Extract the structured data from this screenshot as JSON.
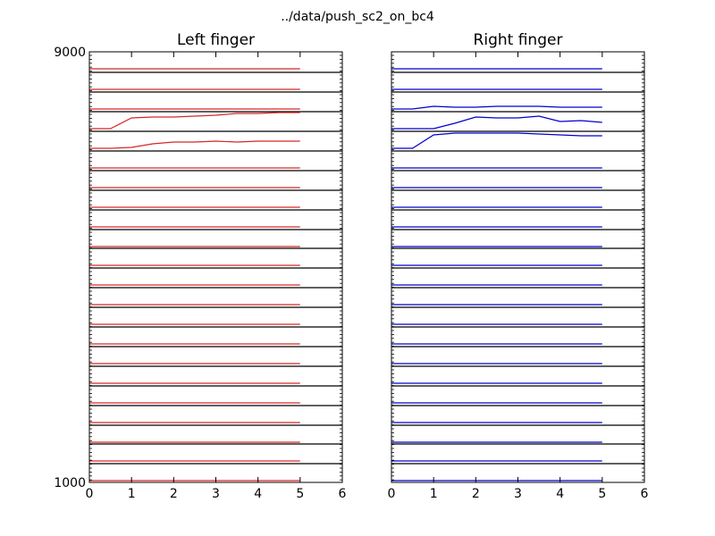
{
  "figure": {
    "title": "../data/push_sc2_on_bc4"
  },
  "chart_data": [
    {
      "type": "line",
      "title": "Left finger",
      "color": "#d62728",
      "xlim": [
        0,
        6
      ],
      "x_ticks": [
        "0",
        "1",
        "2",
        "3",
        "4",
        "5",
        "6"
      ],
      "y_tick_labels_visible": [
        "9000",
        "1000"
      ],
      "n_sensor_bands": 22,
      "x": [
        0,
        0.5,
        1,
        1.5,
        2,
        2.5,
        3,
        3.5,
        4,
        4.5,
        5
      ],
      "series": [
        {
          "values": [
            0,
            0,
            0,
            0,
            0,
            0,
            0,
            0,
            0,
            0,
            0
          ]
        },
        {
          "values": [
            0,
            0,
            0,
            0,
            0,
            0,
            0,
            0,
            0,
            0,
            0
          ]
        },
        {
          "values": [
            0,
            0,
            0,
            0,
            0,
            0,
            0,
            0,
            0,
            0,
            0
          ]
        },
        {
          "values": [
            0,
            0,
            0.6,
            0.65,
            0.65,
            0.7,
            0.75,
            0.85,
            0.85,
            0.9,
            0.9
          ]
        },
        {
          "values": [
            0,
            0,
            0.05,
            0.25,
            0.35,
            0.35,
            0.4,
            0.35,
            0.4,
            0.4,
            0.4
          ]
        },
        {
          "values": [
            0,
            0,
            0,
            0,
            0,
            0,
            0,
            0,
            0,
            0,
            0
          ]
        },
        {
          "values": [
            0,
            0,
            0,
            0,
            0,
            0,
            0,
            0,
            0,
            0,
            0
          ]
        },
        {
          "values": [
            0,
            0,
            0,
            0,
            0,
            0,
            0,
            0,
            0,
            0,
            0
          ]
        },
        {
          "values": [
            0,
            0,
            0,
            0,
            0,
            0,
            0,
            0,
            0,
            0,
            0
          ]
        },
        {
          "values": [
            0,
            0,
            0,
            0,
            0,
            0,
            0,
            0,
            0,
            0,
            0
          ]
        },
        {
          "values": [
            0,
            0,
            0,
            0,
            0,
            0,
            0,
            0,
            0,
            0,
            0
          ]
        },
        {
          "values": [
            0,
            0,
            0,
            0,
            0,
            0,
            0,
            0,
            0,
            0,
            0
          ]
        },
        {
          "values": [
            0,
            0,
            0,
            0,
            0,
            0,
            0,
            0,
            0,
            0,
            0
          ]
        },
        {
          "values": [
            0,
            0,
            0,
            0,
            0,
            0,
            0,
            0,
            0,
            0,
            0
          ]
        },
        {
          "values": [
            0,
            0,
            0,
            0,
            0,
            0,
            0,
            0,
            0,
            0,
            0
          ]
        },
        {
          "values": [
            0,
            0,
            0,
            0,
            0,
            0,
            0,
            0,
            0,
            0,
            0
          ]
        },
        {
          "values": [
            0,
            0,
            0,
            0,
            0,
            0,
            0,
            0,
            0,
            0,
            0
          ]
        },
        {
          "values": [
            0,
            0,
            0,
            0,
            0,
            0,
            0,
            0,
            0,
            0,
            0
          ]
        },
        {
          "values": [
            0,
            0,
            0,
            0,
            0,
            0,
            0,
            0,
            0,
            0,
            0
          ]
        },
        {
          "values": [
            0,
            0,
            0,
            0,
            0,
            0,
            0,
            0,
            0,
            0,
            0
          ]
        },
        {
          "values": [
            0,
            0,
            0,
            0,
            0,
            0,
            0,
            0,
            0,
            0,
            0
          ]
        },
        {
          "values": [
            0,
            0,
            0,
            0,
            0,
            0,
            0,
            0,
            0,
            0,
            0
          ]
        }
      ]
    },
    {
      "type": "line",
      "title": "Right finger",
      "color": "#0000cc",
      "xlim": [
        0,
        6
      ],
      "x_ticks": [
        "0",
        "1",
        "2",
        "3",
        "4",
        "5",
        "6"
      ],
      "y_tick_labels_visible": [],
      "n_sensor_bands": 22,
      "x": [
        0,
        0.5,
        1,
        1.5,
        2,
        2.5,
        3,
        3.5,
        4,
        4.5,
        5
      ],
      "series": [
        {
          "values": [
            0,
            0,
            0,
            0,
            0,
            0,
            0,
            0,
            0,
            0,
            0
          ]
        },
        {
          "values": [
            0,
            0,
            0,
            0,
            0,
            0,
            0,
            0,
            0,
            0,
            0
          ]
        },
        {
          "values": [
            0,
            0,
            0.15,
            0.1,
            0.1,
            0.15,
            0.15,
            0.15,
            0.1,
            0.1,
            0.1
          ]
        },
        {
          "values": [
            0,
            0,
            0,
            0.3,
            0.65,
            0.6,
            0.6,
            0.7,
            0.4,
            0.45,
            0.35
          ]
        },
        {
          "values": [
            0,
            0,
            0.75,
            0.85,
            0.85,
            0.85,
            0.85,
            0.8,
            0.75,
            0.7,
            0.7
          ]
        },
        {
          "values": [
            0,
            0,
            0,
            0,
            0,
            0,
            0,
            0,
            0,
            0,
            0
          ]
        },
        {
          "values": [
            0,
            0,
            0,
            0,
            0,
            0,
            0,
            0,
            0,
            0,
            0
          ]
        },
        {
          "values": [
            0,
            0,
            0,
            0,
            0,
            0,
            0,
            0,
            0,
            0,
            0
          ]
        },
        {
          "values": [
            0,
            0,
            0,
            0,
            0,
            0,
            0,
            0,
            0,
            0,
            0
          ]
        },
        {
          "values": [
            0,
            0,
            0,
            0,
            0,
            0,
            0,
            0,
            0,
            0,
            0
          ]
        },
        {
          "values": [
            0,
            0,
            0,
            0,
            0,
            0,
            0,
            0,
            0,
            0,
            0
          ]
        },
        {
          "values": [
            0,
            0,
            0,
            0,
            0,
            0,
            0,
            0,
            0,
            0,
            0
          ]
        },
        {
          "values": [
            0,
            0,
            0,
            0,
            0,
            0,
            0,
            0,
            0,
            0,
            0
          ]
        },
        {
          "values": [
            0,
            0,
            0,
            0,
            0,
            0,
            0,
            0,
            0,
            0,
            0
          ]
        },
        {
          "values": [
            0,
            0,
            0,
            0,
            0,
            0,
            0,
            0,
            0,
            0,
            0
          ]
        },
        {
          "values": [
            0,
            0,
            0,
            0,
            0,
            0,
            0,
            0,
            0,
            0,
            0
          ]
        },
        {
          "values": [
            0,
            0,
            0,
            0,
            0,
            0,
            0,
            0,
            0,
            0,
            0
          ]
        },
        {
          "values": [
            0,
            0,
            0,
            0,
            0,
            0,
            0,
            0,
            0,
            0,
            0
          ]
        },
        {
          "values": [
            0,
            0,
            0,
            0,
            0,
            0,
            0,
            0,
            0,
            0,
            0
          ]
        },
        {
          "values": [
            0,
            0,
            0,
            0,
            0,
            0,
            0,
            0,
            0,
            0,
            0
          ]
        },
        {
          "values": [
            0,
            0,
            0,
            0,
            0,
            0,
            0,
            0,
            0,
            0,
            0
          ]
        },
        {
          "values": [
            0,
            0,
            0,
            0,
            0,
            0,
            0,
            0,
            0,
            0,
            0
          ]
        }
      ]
    }
  ]
}
